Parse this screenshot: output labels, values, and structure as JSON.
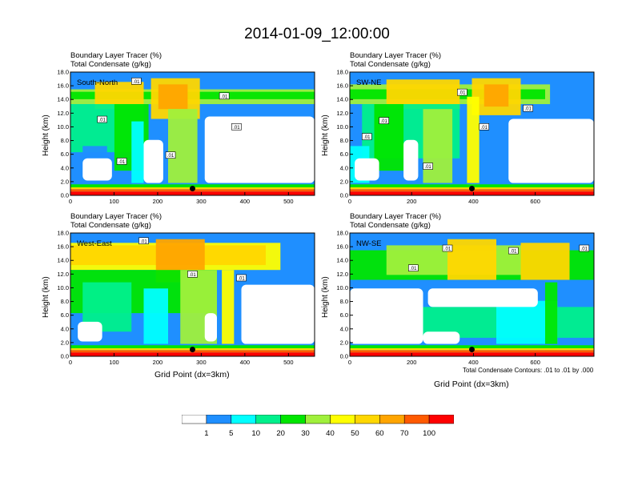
{
  "title": "2014-01-09_12:00:00",
  "chart_data": [
    {
      "type": "heatmap",
      "subtitle_line1": "Boundary Layer Tracer   (%)",
      "subtitle_line2": "Total Condensate   (g/kg)",
      "corner_label": "South-North",
      "ylabel": "Height (km)",
      "xlabel": "",
      "xlim": [
        0,
        560
      ],
      "ylim": [
        0,
        18
      ],
      "x_ticks": [
        "0",
        "100",
        "200",
        "300",
        "400",
        "500"
      ],
      "y_ticks": [
        "0.0",
        "2.0",
        "4.0",
        "6.0",
        "8.0",
        "10.0",
        "12.0",
        "14.0",
        "16.0",
        "18.0"
      ],
      "contour_labels": [
        ".01",
        ".01",
        ".01",
        ".01",
        ".01",
        ".01"
      ],
      "marker_x": 280
    },
    {
      "type": "heatmap",
      "subtitle_line1": "Boundary Layer Tracer   (%)",
      "subtitle_line2": "Total Condensate   (g/kg)",
      "corner_label": "SW-NE",
      "ylabel": "Height (km)",
      "xlabel": "",
      "xlim": [
        0,
        790
      ],
      "ylim": [
        0,
        18
      ],
      "x_ticks": [
        "0",
        "200",
        "400",
        "600"
      ],
      "y_ticks": [
        "0.0",
        "2.0",
        "4.0",
        "6.0",
        "8.0",
        "10.0",
        "12.0",
        "14.0",
        "16.0",
        "18.0"
      ],
      "contour_labels": [
        ".01",
        ".01",
        ".01",
        ".01",
        ".01",
        ".01"
      ],
      "marker_x": 395
    },
    {
      "type": "heatmap",
      "subtitle_line1": "Boundary Layer Tracer   (%)",
      "subtitle_line2": "Total Condensate   (g/kg)",
      "corner_label": "West-East",
      "ylabel": "Height (km)",
      "xlabel": "Grid Point (dx=3km)",
      "xlim": [
        0,
        560
      ],
      "ylim": [
        0,
        18
      ],
      "x_ticks": [
        "0",
        "100",
        "200",
        "300",
        "400",
        "500"
      ],
      "y_ticks": [
        "0.0",
        "2.0",
        "4.0",
        "6.0",
        "8.0",
        "10.0",
        "12.0",
        "14.0",
        "16.0",
        "18.0"
      ],
      "contour_labels": [
        ".01",
        ".01",
        ".01"
      ],
      "marker_x": 280
    },
    {
      "type": "heatmap",
      "subtitle_line1": "Boundary Layer Tracer   (%)",
      "subtitle_line2": "Total Condensate   (g/kg)",
      "corner_label": "NW-SE",
      "ylabel": "Height (km)",
      "xlabel": "Grid Point (dx=3km)",
      "xlim": [
        0,
        790
      ],
      "ylim": [
        0,
        18
      ],
      "x_ticks": [
        "0",
        "200",
        "400",
        "600"
      ],
      "y_ticks": [
        "0.0",
        "2.0",
        "4.0",
        "6.0",
        "8.0",
        "10.0",
        "12.0",
        "14.0",
        "16.0",
        "18.0"
      ],
      "contour_labels": [
        ".01",
        ".01",
        ".01",
        ".01"
      ],
      "contour_note": "Total Condensate Contours: .01 to .01 by .000",
      "marker_x": 395
    }
  ],
  "colorbar": {
    "colors": [
      "#ffffff",
      "#1f8fff",
      "#00ffff",
      "#00f08c",
      "#00e600",
      "#a0f03c",
      "#ffff00",
      "#ffd700",
      "#ffa500",
      "#ff5a00",
      "#ff0000"
    ],
    "labels": [
      "1",
      "5",
      "10",
      "20",
      "30",
      "40",
      "50",
      "60",
      "70",
      "100"
    ]
  }
}
